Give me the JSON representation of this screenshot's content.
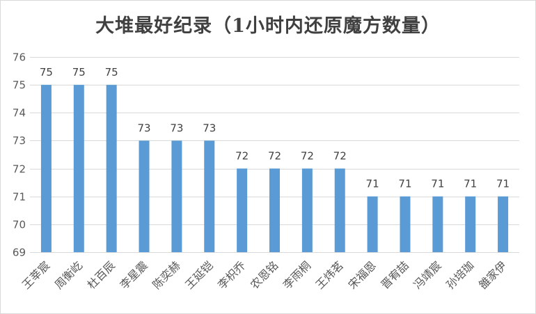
{
  "chart_data": {
    "type": "bar",
    "title": "大堆最好纪录（1小时内还原魔方数量）",
    "xlabel": "",
    "ylabel": "",
    "categories": [
      "王莘宸",
      "周衡屹",
      "杜百辰",
      "李星震",
      "陈奕赫",
      "王延铠",
      "李枳乔",
      "农恩铭",
      "李雨桐",
      "王炜茗",
      "宋福恩",
      "晋宥喆",
      "冯靖宸",
      "孙培珈",
      "雒家伊"
    ],
    "values": [
      75,
      75,
      75,
      73,
      73,
      73,
      72,
      72,
      72,
      72,
      71,
      71,
      71,
      71,
      71
    ],
    "ylim": [
      69,
      76
    ],
    "yticks": [
      69,
      70,
      71,
      72,
      73,
      74,
      75,
      76
    ],
    "grid": true,
    "bar_color": "#5b9bd5",
    "grid_color": "#d9d9d9"
  }
}
